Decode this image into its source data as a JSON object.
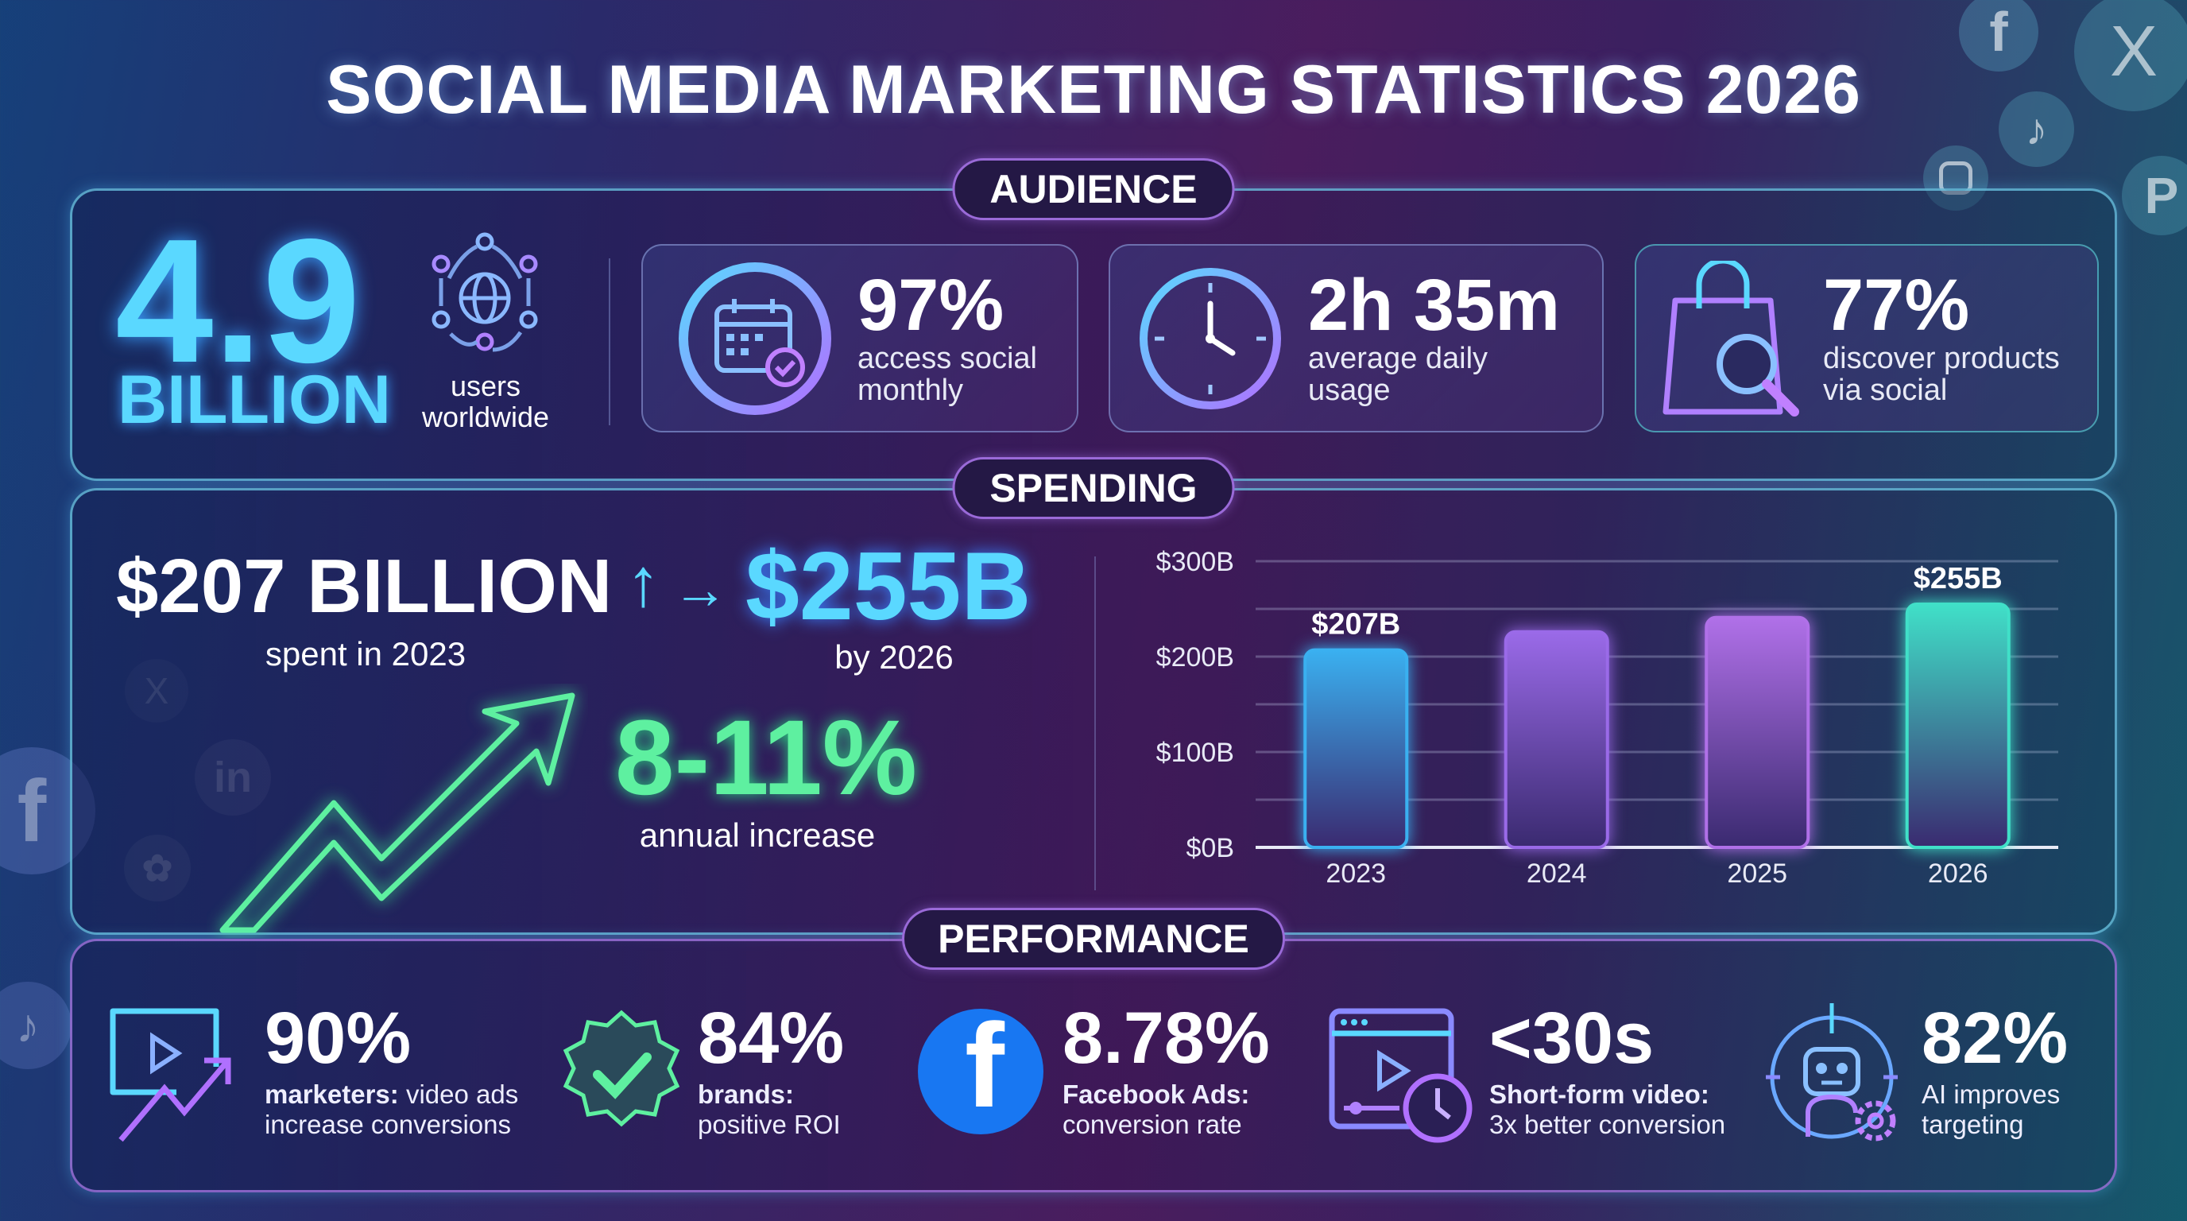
{
  "title": "SOCIAL MEDIA MARKETING STATISTICS 2026",
  "audience": {
    "badge": "AUDIENCE",
    "users": {
      "value": "4.9",
      "unit": "BILLION",
      "desc_1": "users",
      "desc_2": "worldwide",
      "icon": "global-network-icon"
    },
    "cards": [
      {
        "value": "97%",
        "line_1": "access social",
        "line_2": "monthly",
        "icon": "calendar-check-icon"
      },
      {
        "value": "2h 35m",
        "line_1": "average daily",
        "line_2": "usage",
        "icon": "clock-icon"
      },
      {
        "value": "77%",
        "line_1": "discover products",
        "line_2": "via social",
        "icon": "shopping-bag-search-icon"
      }
    ]
  },
  "spending": {
    "badge": "SPENDING",
    "from_value": "$207 BILLION",
    "from_label": "spent in 2023",
    "to_value": "$255B",
    "to_label": "by 2026",
    "growth_value": "8-11%",
    "growth_label": "annual increase"
  },
  "chart_data": {
    "type": "bar",
    "categories": [
      "2023",
      "2024",
      "2025",
      "2026"
    ],
    "values": [
      207,
      226,
      241,
      255
    ],
    "data_labels": [
      "$207B",
      "",
      "",
      "$255B"
    ],
    "y_ticks": [
      "$0B",
      "$100B",
      "$200B",
      "$300B"
    ],
    "ylim": [
      0,
      300
    ],
    "grid": true,
    "colors": [
      "#3ab0f0",
      "#9a6ae8",
      "#b070e8",
      "#40e0c8"
    ]
  },
  "performance": {
    "badge": "PERFORMANCE",
    "items": [
      {
        "value": "90%",
        "bold": "marketers:",
        "line_1": " video ads",
        "line_2": "increase conversions",
        "icon": "video-growth-icon"
      },
      {
        "value": "84%",
        "bold": "brands:",
        "line_1": "",
        "line_2": "positive ROI",
        "icon": "verified-badge-icon"
      },
      {
        "value": "8.78%",
        "bold": "Facebook Ads:",
        "line_1": "",
        "line_2": "conversion rate",
        "icon": "facebook-icon"
      },
      {
        "value": "<30s",
        "bold": "Short-form video:",
        "line_1": "",
        "line_2": "3x better conversion",
        "icon": "video-timer-icon"
      },
      {
        "value": "82%",
        "bold": "",
        "line_1": "AI improves",
        "line_2": "targeting",
        "icon": "ai-robot-icon"
      }
    ]
  },
  "colors": {
    "accent_cyan": "#5ad8ff",
    "accent_green": "#5ef0a0",
    "accent_purple": "#9a6ad8",
    "facebook_blue": "#1877f2"
  }
}
